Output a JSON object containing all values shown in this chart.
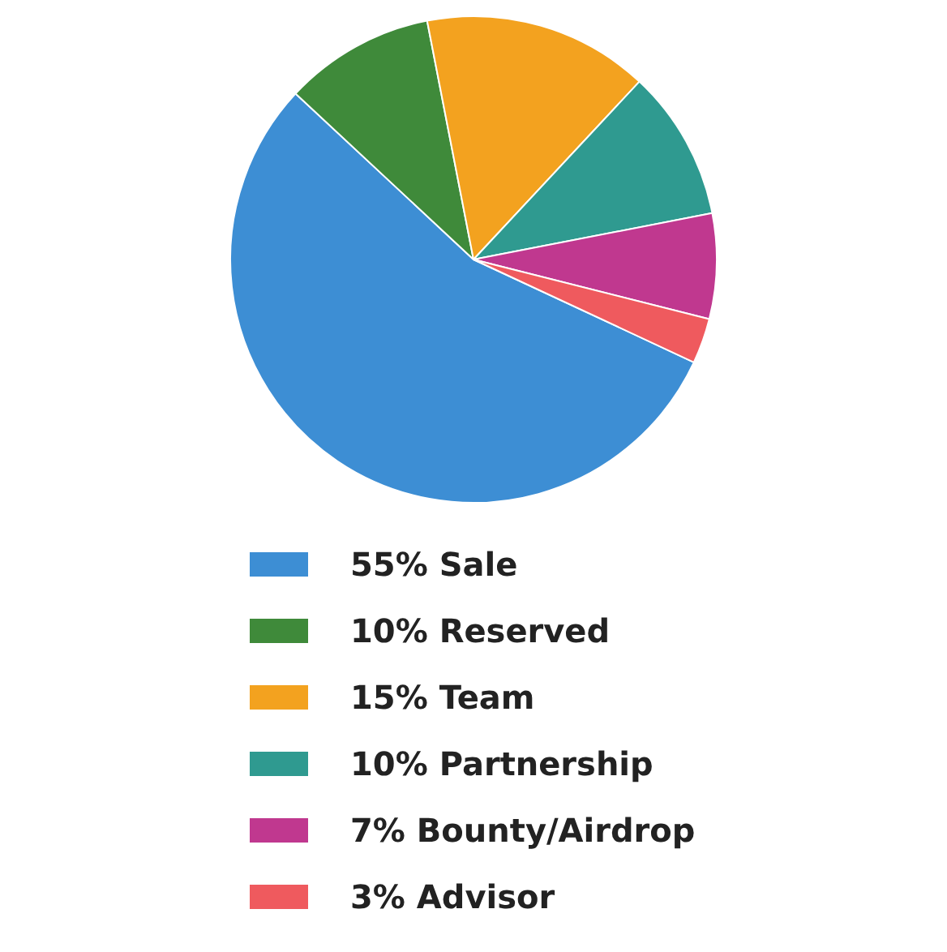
{
  "chart_data": {
    "type": "pie",
    "categories": [
      "55% Sale",
      "10% Reserved",
      "15% Team",
      "10% Partnership",
      "7% Bounty/Airdrop",
      "3% Advisor"
    ],
    "values": [
      55,
      10,
      15,
      10,
      7,
      3
    ],
    "colors": [
      "#3d8ed4",
      "#3f8a3a",
      "#f3a21f",
      "#2f9a90",
      "#c0388f",
      "#ef5a5e"
    ],
    "legend": "bottom"
  }
}
